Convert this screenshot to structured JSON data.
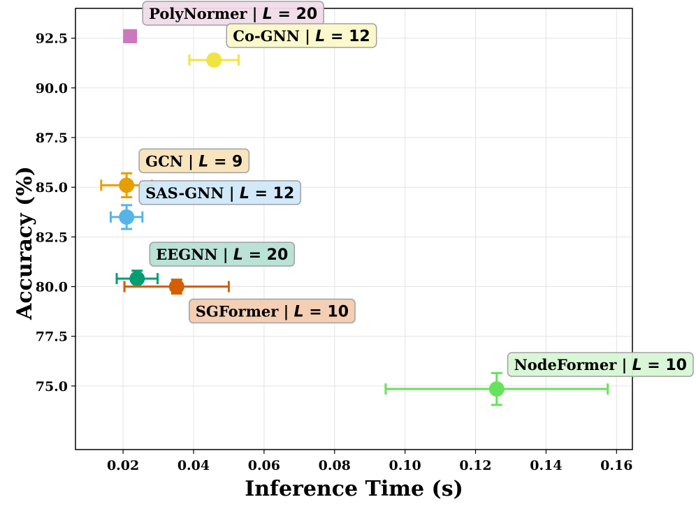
{
  "chart_data": {
    "type": "scatter",
    "xlabel": "Inference Time (s)",
    "ylabel": "Accuracy (%)",
    "xlim": [
      0.0065,
      0.1645
    ],
    "ylim": [
      71.8,
      94.0
    ],
    "xticks": [
      0.02,
      0.04,
      0.06,
      0.08,
      0.1,
      0.12,
      0.14,
      0.16
    ],
    "xtick_labels": [
      "0.02",
      "0.04",
      "0.06",
      "0.08",
      "0.10",
      "0.12",
      "0.14",
      "0.16"
    ],
    "yticks": [
      75.0,
      77.5,
      80.0,
      82.5,
      85.0,
      87.5,
      90.0,
      92.5
    ],
    "ytick_labels": [
      "75.0",
      "77.5",
      "80.0",
      "82.5",
      "85.0",
      "87.5",
      "90.0",
      "92.5"
    ],
    "grid": true,
    "points": [
      {
        "name": "PolyNormer",
        "L": "20",
        "x": 0.022,
        "y": 92.6,
        "xerr": 0.0008,
        "yerr": 0.3,
        "color": "#cc78bc",
        "marker": "square",
        "label_bg": "#f1dbe9",
        "label_pos": "upper-right"
      },
      {
        "name": "Co-GNN",
        "L": "12",
        "x": 0.0458,
        "y": 91.4,
        "xerr": 0.007,
        "yerr": 0.25,
        "color": "#f0e442",
        "marker": "circle",
        "label_bg": "#fbf8c9",
        "label_pos": "upper-right"
      },
      {
        "name": "GCN",
        "L": "9",
        "x": 0.021,
        "y": 85.1,
        "xerr": 0.0072,
        "yerr": 0.6,
        "color": "#e69f00",
        "marker": "circle",
        "label_bg": "#f8e3b9",
        "label_pos": "upper-right"
      },
      {
        "name": "SAS-GNN",
        "L": "12",
        "x": 0.021,
        "y": 83.5,
        "xerr": 0.0045,
        "yerr": 0.6,
        "color": "#56b4e9",
        "marker": "circle",
        "label_bg": "#cfe8f8",
        "label_pos": "upper-right"
      },
      {
        "name": "EEGNN",
        "L": "20",
        "x": 0.024,
        "y": 80.4,
        "xerr": 0.0058,
        "yerr": 0.4,
        "color": "#009e73",
        "marker": "circle",
        "label_bg": "#b6e0d4",
        "label_pos": "upper-right"
      },
      {
        "name": "SGFormer",
        "L": "10",
        "x": 0.0352,
        "y": 80.0,
        "xerr": 0.0148,
        "yerr": 0.35,
        "color": "#d55e00",
        "marker": "circle",
        "label_bg": "#f3ccb0",
        "label_pos": "lower-right"
      },
      {
        "name": "NodeFormer",
        "L": "10",
        "x": 0.126,
        "y": 74.85,
        "xerr": 0.0315,
        "yerr": 0.8,
        "color": "#66e35c",
        "marker": "circle",
        "label_bg": "#d7f7d4",
        "label_pos": "upper-right"
      }
    ]
  }
}
